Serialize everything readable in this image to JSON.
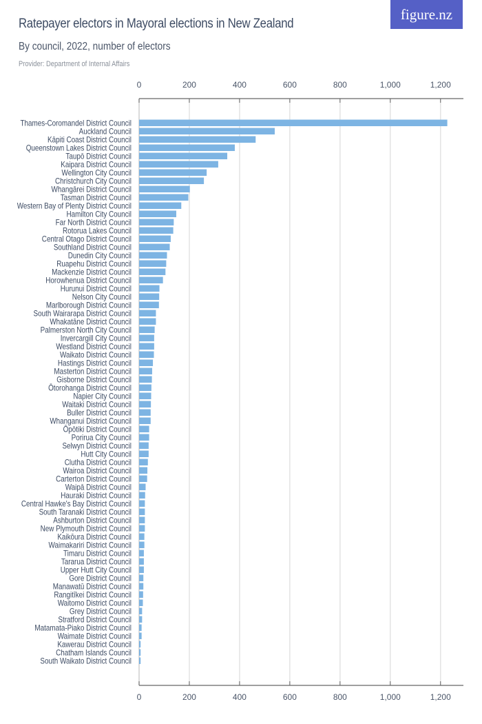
{
  "header": {
    "title": "Ratepayer electors in Mayoral elections in New Zealand",
    "subtitle": "By council, 2022, number of electors",
    "provider": "Provider: Department of Internal Affairs",
    "logo": "figure.nz"
  },
  "colors": {
    "bar": "#7db4e3",
    "logo_bg": "#5560c6",
    "grid": "#e3e3e3",
    "axis": "#666666",
    "text": "#3d4b63"
  },
  "chart_data": {
    "type": "bar",
    "orientation": "horizontal",
    "title": "Ratepayer electors in Mayoral elections in New Zealand",
    "subtitle": "By council, 2022, number of electors",
    "xlabel": "",
    "ylabel": "",
    "xlim": [
      0,
      1300
    ],
    "xticks": [
      0,
      200,
      400,
      600,
      800,
      1000,
      1200
    ],
    "xtick_labels": [
      "0",
      "200",
      "400",
      "600",
      "800",
      "1,000",
      "1,200"
    ],
    "grid": true,
    "legend": null,
    "categories": [
      "Thames-Coromandel District Council",
      "Auckland Council",
      "Kāpiti Coast District Council",
      "Queenstown Lakes District Council",
      "Taupō District Council",
      "Kaipara District Council",
      "Wellington City Council",
      "Christchurch City Council",
      "Whangārei District Council",
      "Tasman District Council",
      "Western Bay of Plenty District Council",
      "Hamilton City Council",
      "Far North District Council",
      "Rotorua Lakes Council",
      "Central Otago District Council",
      "Southland District Council",
      "Dunedin City Council",
      "Ruapehu District Council",
      "Mackenzie District Council",
      "Horowhenua District Council",
      "Hurunui District Council",
      "Nelson City Council",
      "Marlborough District Council",
      "South Wairarapa District Council",
      "Whakatāne District Council",
      "Palmerston North City Council",
      "Invercargill City Council",
      "Westland District Council",
      "Waikato District Council",
      "Hastings District Council",
      "Masterton District Council",
      "Gisborne District Council",
      "Ōtorohanga District Council",
      "Napier City Council",
      "Waitaki District Council",
      "Buller District Council",
      "Whanganui District Council",
      "Ōpōtiki District Council",
      "Porirua City Council",
      "Selwyn District Council",
      "Hutt City Council",
      "Clutha District Council",
      "Wairoa District Council",
      "Carterton District Council",
      "Waipā District Council",
      "Hauraki District Council",
      "Central Hawke's Bay District Council",
      "South Taranaki District Council",
      "Ashburton District Council",
      "New Plymouth District Council",
      "Kaikōura District Council",
      "Waimakariri District Council",
      "Timaru District Council",
      "Tararua District Council",
      "Upper Hutt City Council",
      "Gore District Council",
      "Manawatū District Council",
      "Rangitīkei District Council",
      "Waitomo District Council",
      "Grey District Council",
      "Stratford District Council",
      "Matamata-Piako District Council",
      "Waimate District Council",
      "Kawerau District Council",
      "Chatham Islands Council",
      "South Waikato District Council"
    ],
    "values": [
      1227,
      540,
      464,
      381,
      351,
      315,
      269,
      258,
      202,
      196,
      168,
      148,
      138,
      136,
      126,
      122,
      111,
      108,
      105,
      95,
      81,
      80,
      79,
      67,
      67,
      62,
      60,
      60,
      59,
      55,
      52,
      51,
      49,
      48,
      47,
      46,
      46,
      40,
      40,
      38,
      38,
      35,
      33,
      32,
      26,
      24,
      23,
      23,
      23,
      23,
      21,
      21,
      19,
      19,
      19,
      17,
      17,
      16,
      15,
      12,
      12,
      10,
      10,
      6,
      6,
      6
    ]
  }
}
